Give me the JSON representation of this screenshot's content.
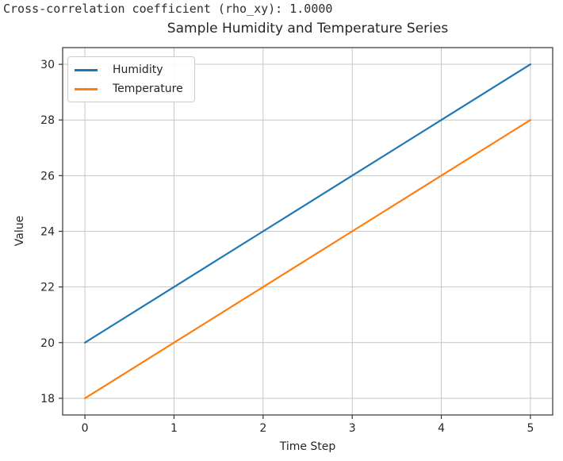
{
  "console_text": "Cross-correlation coefficient (rho_xy): 1.0000",
  "chart_data": {
    "type": "line",
    "title": "Sample Humidity and Temperature Series",
    "xlabel": "Time Step",
    "ylabel": "Value",
    "x": [
      0,
      1,
      2,
      3,
      4,
      5
    ],
    "series": [
      {
        "name": "Humidity",
        "color": "#1f77b4",
        "values": [
          20,
          22,
          24,
          26,
          28,
          30
        ]
      },
      {
        "name": "Temperature",
        "color": "#ff7f0e",
        "values": [
          18,
          20,
          22,
          24,
          26,
          28
        ]
      }
    ],
    "xticks": [
      0,
      1,
      2,
      3,
      4,
      5
    ],
    "yticks": [
      18,
      20,
      22,
      24,
      26,
      28,
      30
    ],
    "xlim": [
      -0.25,
      5.25
    ],
    "ylim": [
      17.4,
      30.6
    ],
    "grid": true,
    "grid_color": "#c6c6c6",
    "spine_color": "#333333",
    "tick_label_color": "#262626",
    "legend_position": "upper left"
  }
}
